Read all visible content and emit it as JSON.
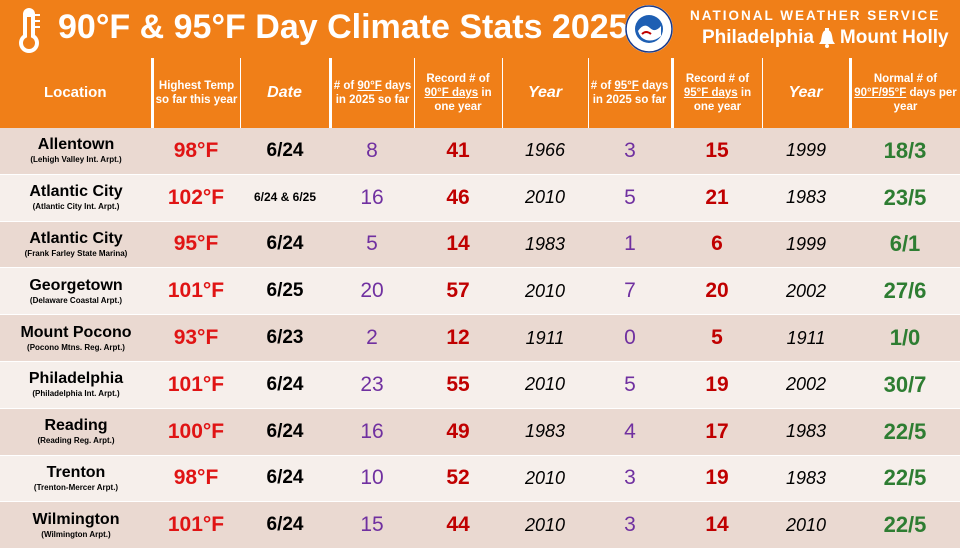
{
  "header": {
    "title": "90°F & 95°F Day Climate Stats 2025",
    "nws_name": "NATIONAL WEATHER SERVICE",
    "office_left": "Philadelphia",
    "office_right": "Mount Holly",
    "logo_text": "NATIONAL WEATHER SERVICE",
    "colors": {
      "banner": "#f07f18",
      "high_temp": "#e01414",
      "count": "#7030a0",
      "record": "#c00000",
      "normal": "#2e7d32"
    }
  },
  "columns": {
    "location": "Location",
    "highest_temp": "Highest Temp so far this year",
    "date": "Date",
    "days90_pre": "# of ",
    "days90_u": "90°F",
    "days90_post": " days in 2025 so far",
    "record90_pre": "Record # of ",
    "record90_u": "90°F days",
    "record90_post": " in one year",
    "year90": "Year",
    "days95_pre": "# of ",
    "days95_u": "95°F",
    "days95_post": " days in 2025 so far",
    "record95_pre": "Record # of ",
    "record95_u": "95°F days",
    "record95_post": " in one year",
    "year95": "Year",
    "normal_pre": "Normal # of ",
    "normal_u": "90°F/95°F",
    "normal_post": " days per year"
  },
  "rows": [
    {
      "location": "Allentown",
      "station": "(Lehigh Valley Int. Arpt.)",
      "high": "98°F",
      "date": "6/24",
      "days90": "8",
      "record90": "41",
      "year90": "1966",
      "days95": "3",
      "record95": "15",
      "year95": "1999",
      "normal": "18/3"
    },
    {
      "location": "Atlantic City",
      "station": "(Atlantic City Int. Arpt.)",
      "high": "102°F",
      "date": "6/24 & 6/25",
      "days90": "16",
      "record90": "46",
      "year90": "2010",
      "days95": "5",
      "record95": "21",
      "year95": "1983",
      "normal": "23/5"
    },
    {
      "location": "Atlantic City",
      "station": "(Frank Farley State Marina)",
      "high": "95°F",
      "date": "6/24",
      "days90": "5",
      "record90": "14",
      "year90": "1983",
      "days95": "1",
      "record95": "6",
      "year95": "1999",
      "normal": "6/1"
    },
    {
      "location": "Georgetown",
      "station": "(Delaware Coastal Arpt.)",
      "high": "101°F",
      "date": "6/25",
      "days90": "20",
      "record90": "57",
      "year90": "2010",
      "days95": "7",
      "record95": "20",
      "year95": "2002",
      "normal": "27/6"
    },
    {
      "location": "Mount Pocono",
      "station": "(Pocono Mtns. Reg. Arpt.)",
      "high": "93°F",
      "date": "6/23",
      "days90": "2",
      "record90": "12",
      "year90": "1911",
      "days95": "0",
      "record95": "5",
      "year95": "1911",
      "normal": "1/0"
    },
    {
      "location": "Philadelphia",
      "station": "(Philadelphia Int. Arpt.)",
      "high": "101°F",
      "date": "6/24",
      "days90": "23",
      "record90": "55",
      "year90": "2010",
      "days95": "5",
      "record95": "19",
      "year95": "2002",
      "normal": "30/7"
    },
    {
      "location": "Reading",
      "station": "(Reading Reg. Arpt.)",
      "high": "100°F",
      "date": "6/24",
      "days90": "16",
      "record90": "49",
      "year90": "1983",
      "days95": "4",
      "record95": "17",
      "year95": "1983",
      "normal": "22/5"
    },
    {
      "location": "Trenton",
      "station": "(Trenton-Mercer Arpt.)",
      "high": "98°F",
      "date": "6/24",
      "days90": "10",
      "record90": "52",
      "year90": "2010",
      "days95": "3",
      "record95": "19",
      "year95": "1983",
      "normal": "22/5"
    },
    {
      "location": "Wilmington",
      "station": "(Wilmington Arpt.)",
      "high": "101°F",
      "date": "6/24",
      "days90": "15",
      "record90": "44",
      "year90": "2010",
      "days95": "3",
      "record95": "14",
      "year95": "2010",
      "normal": "22/5"
    }
  ]
}
